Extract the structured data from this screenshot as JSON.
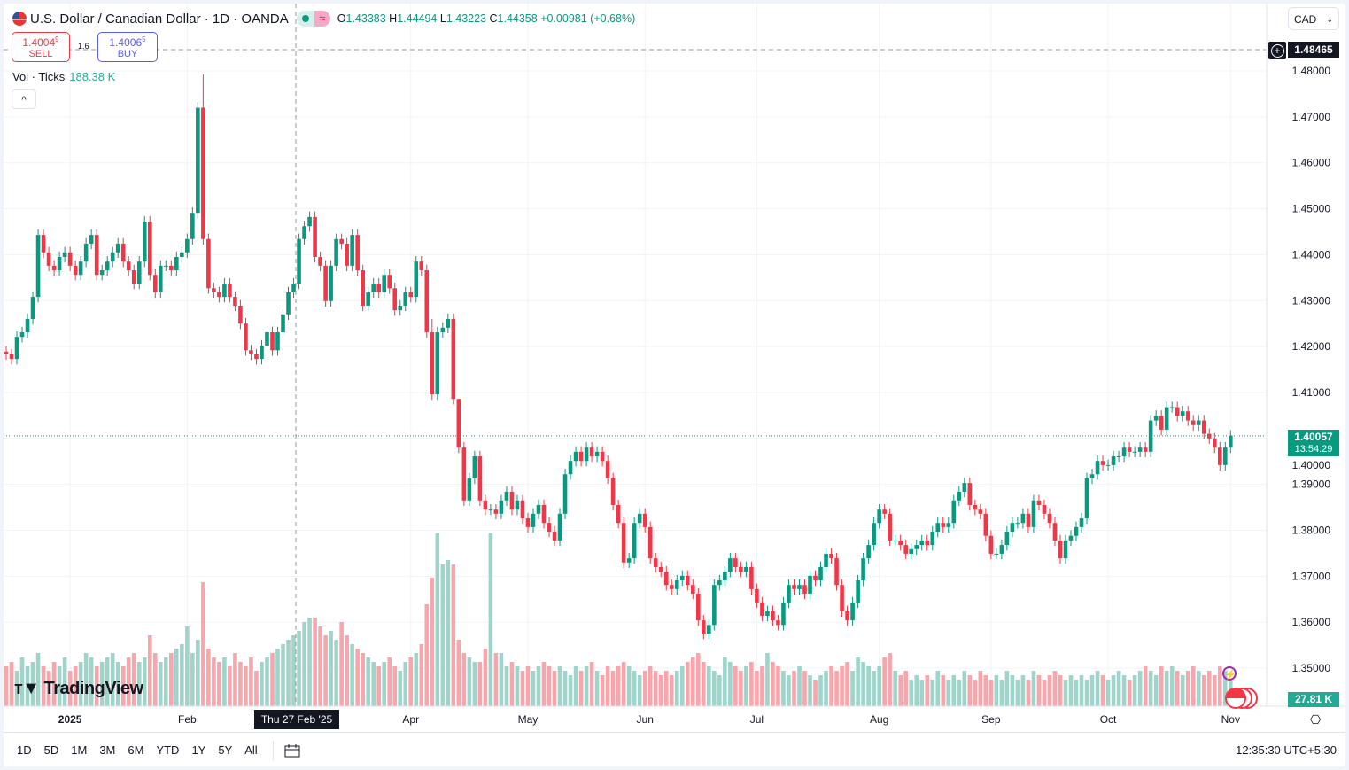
{
  "legend": {
    "title": "U.S. Dollar / Canadian Dollar · 1D · OANDA",
    "wave_icon": "≈",
    "open_label": "O",
    "open": "1.43383",
    "high_label": "H",
    "high": "1.44494",
    "low_label": "L",
    "low": "1.43223",
    "close_label": "C",
    "close": "1.44358",
    "change": "+0.00981 (+0.68%)"
  },
  "trade": {
    "sell_price": "1.4004",
    "sell_sup": "9",
    "sell_label": "SELL",
    "spread": "1.6",
    "buy_price": "1.4006",
    "buy_sup": "5",
    "buy_label": "BUY"
  },
  "volume_legend": {
    "label": "Vol · Ticks",
    "value": "188.38 K"
  },
  "collapse_icon": "^",
  "currency": {
    "selected": "CAD",
    "chevron": "⌄"
  },
  "crosshair": {
    "price": "1.48465",
    "date": "Thu 27 Feb '25"
  },
  "last_price": {
    "price": "1.40057",
    "countdown": "13:54:29"
  },
  "last_volume": "27.81 K",
  "settings_icon": "⎔",
  "colors": {
    "up": "#089981",
    "down": "#f23645",
    "up_vol": "#9fd4cb",
    "down_vol": "#f8a5ab",
    "grid": "#f2f3f5"
  },
  "bottom": {
    "ranges": [
      "1D",
      "5D",
      "1M",
      "3M",
      "6M",
      "YTD",
      "1Y",
      "5Y",
      "All"
    ],
    "calendar_icon": "📅",
    "clock": "12:35:30 UTC+5:30"
  },
  "chart_data": {
    "type": "candlestick",
    "title": "U.S. Dollar / Canadian Dollar · 1D · OANDA",
    "ylim": [
      1.35,
      1.48
    ],
    "y_ticks": [
      "1.48000",
      "1.47000",
      "1.46000",
      "1.45000",
      "1.44000",
      "1.43000",
      "1.42000",
      "1.41000",
      "1.40000",
      "1.39000",
      "1.38000",
      "1.37000",
      "1.36000",
      "1.35000"
    ],
    "y_tick_values": [
      1.48,
      1.47,
      1.46,
      1.45,
      1.44,
      1.43,
      1.42,
      1.41,
      1.4,
      1.39,
      1.38,
      1.37,
      1.36,
      1.35
    ],
    "x_ticks": [
      "2025",
      "Feb",
      "Apr",
      "May",
      "Jun",
      "Jul",
      "Aug",
      "Sep",
      "Oct",
      "Nov"
    ],
    "x_tick_candle_index": [
      12,
      34,
      76,
      98,
      120,
      141,
      164,
      185,
      207,
      230
    ],
    "wick": 0.0012,
    "high_overrides": {
      "37": 1.4792,
      "80": 1.426,
      "85": 1.408
    },
    "close": [
      1.4183,
      1.4173,
      1.4221,
      1.4231,
      1.426,
      1.4308,
      1.4443,
      1.4405,
      1.4376,
      1.4366,
      1.4395,
      1.4405,
      1.4376,
      1.4356,
      1.4385,
      1.4424,
      1.4443,
      1.4356,
      1.4366,
      1.4385,
      1.4405,
      1.4424,
      1.4385,
      1.4366,
      1.4337,
      1.4385,
      1.4472,
      1.4356,
      1.4318,
      1.4376,
      1.4376,
      1.4366,
      1.4395,
      1.4405,
      1.4434,
      1.4491,
      1.472,
      1.4434,
      1.4327,
      1.4318,
      1.4308,
      1.4337,
      1.4308,
      1.4289,
      1.425,
      1.4192,
      1.4183,
      1.4173,
      1.4202,
      1.4231,
      1.4192,
      1.4231,
      1.427,
      1.4318,
      1.4337,
      1.4434,
      1.4462,
      1.4482,
      1.4395,
      1.4376,
      1.4299,
      1.4376,
      1.4434,
      1.4424,
      1.4376,
      1.4443,
      1.4366,
      1.4289,
      1.4318,
      1.4337,
      1.4318,
      1.4356,
      1.4327,
      1.4279,
      1.4289,
      1.4318,
      1.4308,
      1.4385,
      1.4366,
      1.4231,
      1.4096,
      1.4231,
      1.4241,
      1.426,
      1.4086,
      1.398,
      1.3865,
      1.3913,
      1.3961,
      1.3865,
      1.3845,
      1.3845,
      1.3836,
      1.3865,
      1.3884,
      1.3845,
      1.3865,
      1.3826,
      1.3807,
      1.3836,
      1.3855,
      1.3816,
      1.3797,
      1.3778,
      1.3836,
      1.3922,
      1.3951,
      1.3971,
      1.3951,
      1.398,
      1.3961,
      1.3971,
      1.3951,
      1.3913,
      1.3855,
      1.3816,
      1.373,
      1.3739,
      1.3816,
      1.3836,
      1.3807,
      1.3739,
      1.372,
      1.371,
      1.3681,
      1.3672,
      1.3691,
      1.3701,
      1.3681,
      1.3662,
      1.3604,
      1.3575,
      1.3594,
      1.3681,
      1.3691,
      1.371,
      1.3739,
      1.372,
      1.371,
      1.372,
      1.3672,
      1.3643,
      1.3614,
      1.3624,
      1.3604,
      1.3594,
      1.3643,
      1.3681,
      1.3672,
      1.3681,
      1.3662,
      1.3701,
      1.3691,
      1.372,
      1.3749,
      1.3739,
      1.3681,
      1.3624,
      1.3604,
      1.3643,
      1.3691,
      1.3739,
      1.3768,
      1.3816,
      1.3845,
      1.3836,
      1.3778,
      1.3778,
      1.3768,
      1.3749,
      1.3759,
      1.3768,
      1.3778,
      1.3768,
      1.3797,
      1.3816,
      1.3807,
      1.3816,
      1.3865,
      1.3884,
      1.3903,
      1.3855,
      1.3845,
      1.3836,
      1.3788,
      1.3749,
      1.3749,
      1.3768,
      1.3797,
      1.3816,
      1.3816,
      1.3836,
      1.3807,
      1.3865,
      1.3855,
      1.3836,
      1.3816,
      1.3778,
      1.3739,
      1.3778,
      1.3788,
      1.3807,
      1.3826,
      1.3913,
      1.3922,
      1.3951,
      1.3942,
      1.3942,
      1.3961,
      1.3961,
      1.398,
      1.3971,
      1.3971,
      1.398,
      1.3971,
      1.4039,
      1.4049,
      1.4019,
      1.4068,
      1.4068,
      1.4049,
      1.4059,
      1.4039,
      1.4029,
      1.4039,
      1.401,
      1.4,
      1.398,
      1.3942,
      1.398,
      1.4006
    ],
    "volume_k": [
      45,
      50,
      40,
      55,
      45,
      50,
      60,
      45,
      40,
      50,
      45,
      55,
      40,
      45,
      50,
      60,
      55,
      45,
      50,
      55,
      60,
      50,
      45,
      55,
      60,
      50,
      55,
      80,
      60,
      50,
      55,
      60,
      65,
      70,
      90,
      60,
      75,
      140,
      65,
      55,
      50,
      55,
      45,
      60,
      50,
      45,
      55,
      40,
      50,
      55,
      60,
      65,
      70,
      75,
      80,
      85,
      95,
      100,
      100,
      90,
      80,
      85,
      75,
      95,
      80,
      70,
      65,
      60,
      55,
      50,
      45,
      50,
      55,
      45,
      40,
      50,
      55,
      60,
      70,
      115,
      145,
      195,
      160,
      165,
      160,
      75,
      60,
      55,
      50,
      50,
      65,
      195,
      60,
      60,
      45,
      50,
      45,
      40,
      45,
      40,
      45,
      50,
      45,
      40,
      45,
      40,
      35,
      45,
      40,
      45,
      50,
      40,
      35,
      45,
      40,
      45,
      50,
      45,
      40,
      35,
      40,
      45,
      40,
      35,
      40,
      35,
      40,
      45,
      50,
      55,
      60,
      50,
      45,
      40,
      35,
      55,
      50,
      45,
      40,
      45,
      50,
      40,
      45,
      60,
      50,
      45,
      40,
      35,
      40,
      45,
      40,
      35,
      30,
      35,
      40,
      45,
      40,
      45,
      50,
      40,
      55,
      50,
      45,
      40,
      45,
      55,
      60,
      40,
      35,
      40,
      30,
      35,
      30,
      35,
      30,
      40,
      35,
      30,
      35,
      30,
      40,
      35,
      30,
      40,
      35,
      30,
      35,
      30,
      40,
      35,
      30,
      35,
      30,
      40,
      35,
      30,
      35,
      40,
      35,
      30,
      35,
      30,
      35,
      30,
      35,
      40,
      35,
      30,
      35,
      40,
      35,
      30,
      35,
      40,
      45,
      40,
      35,
      45,
      40,
      45,
      40,
      35,
      40,
      45,
      40,
      35,
      40,
      35,
      45,
      40,
      28
    ]
  }
}
